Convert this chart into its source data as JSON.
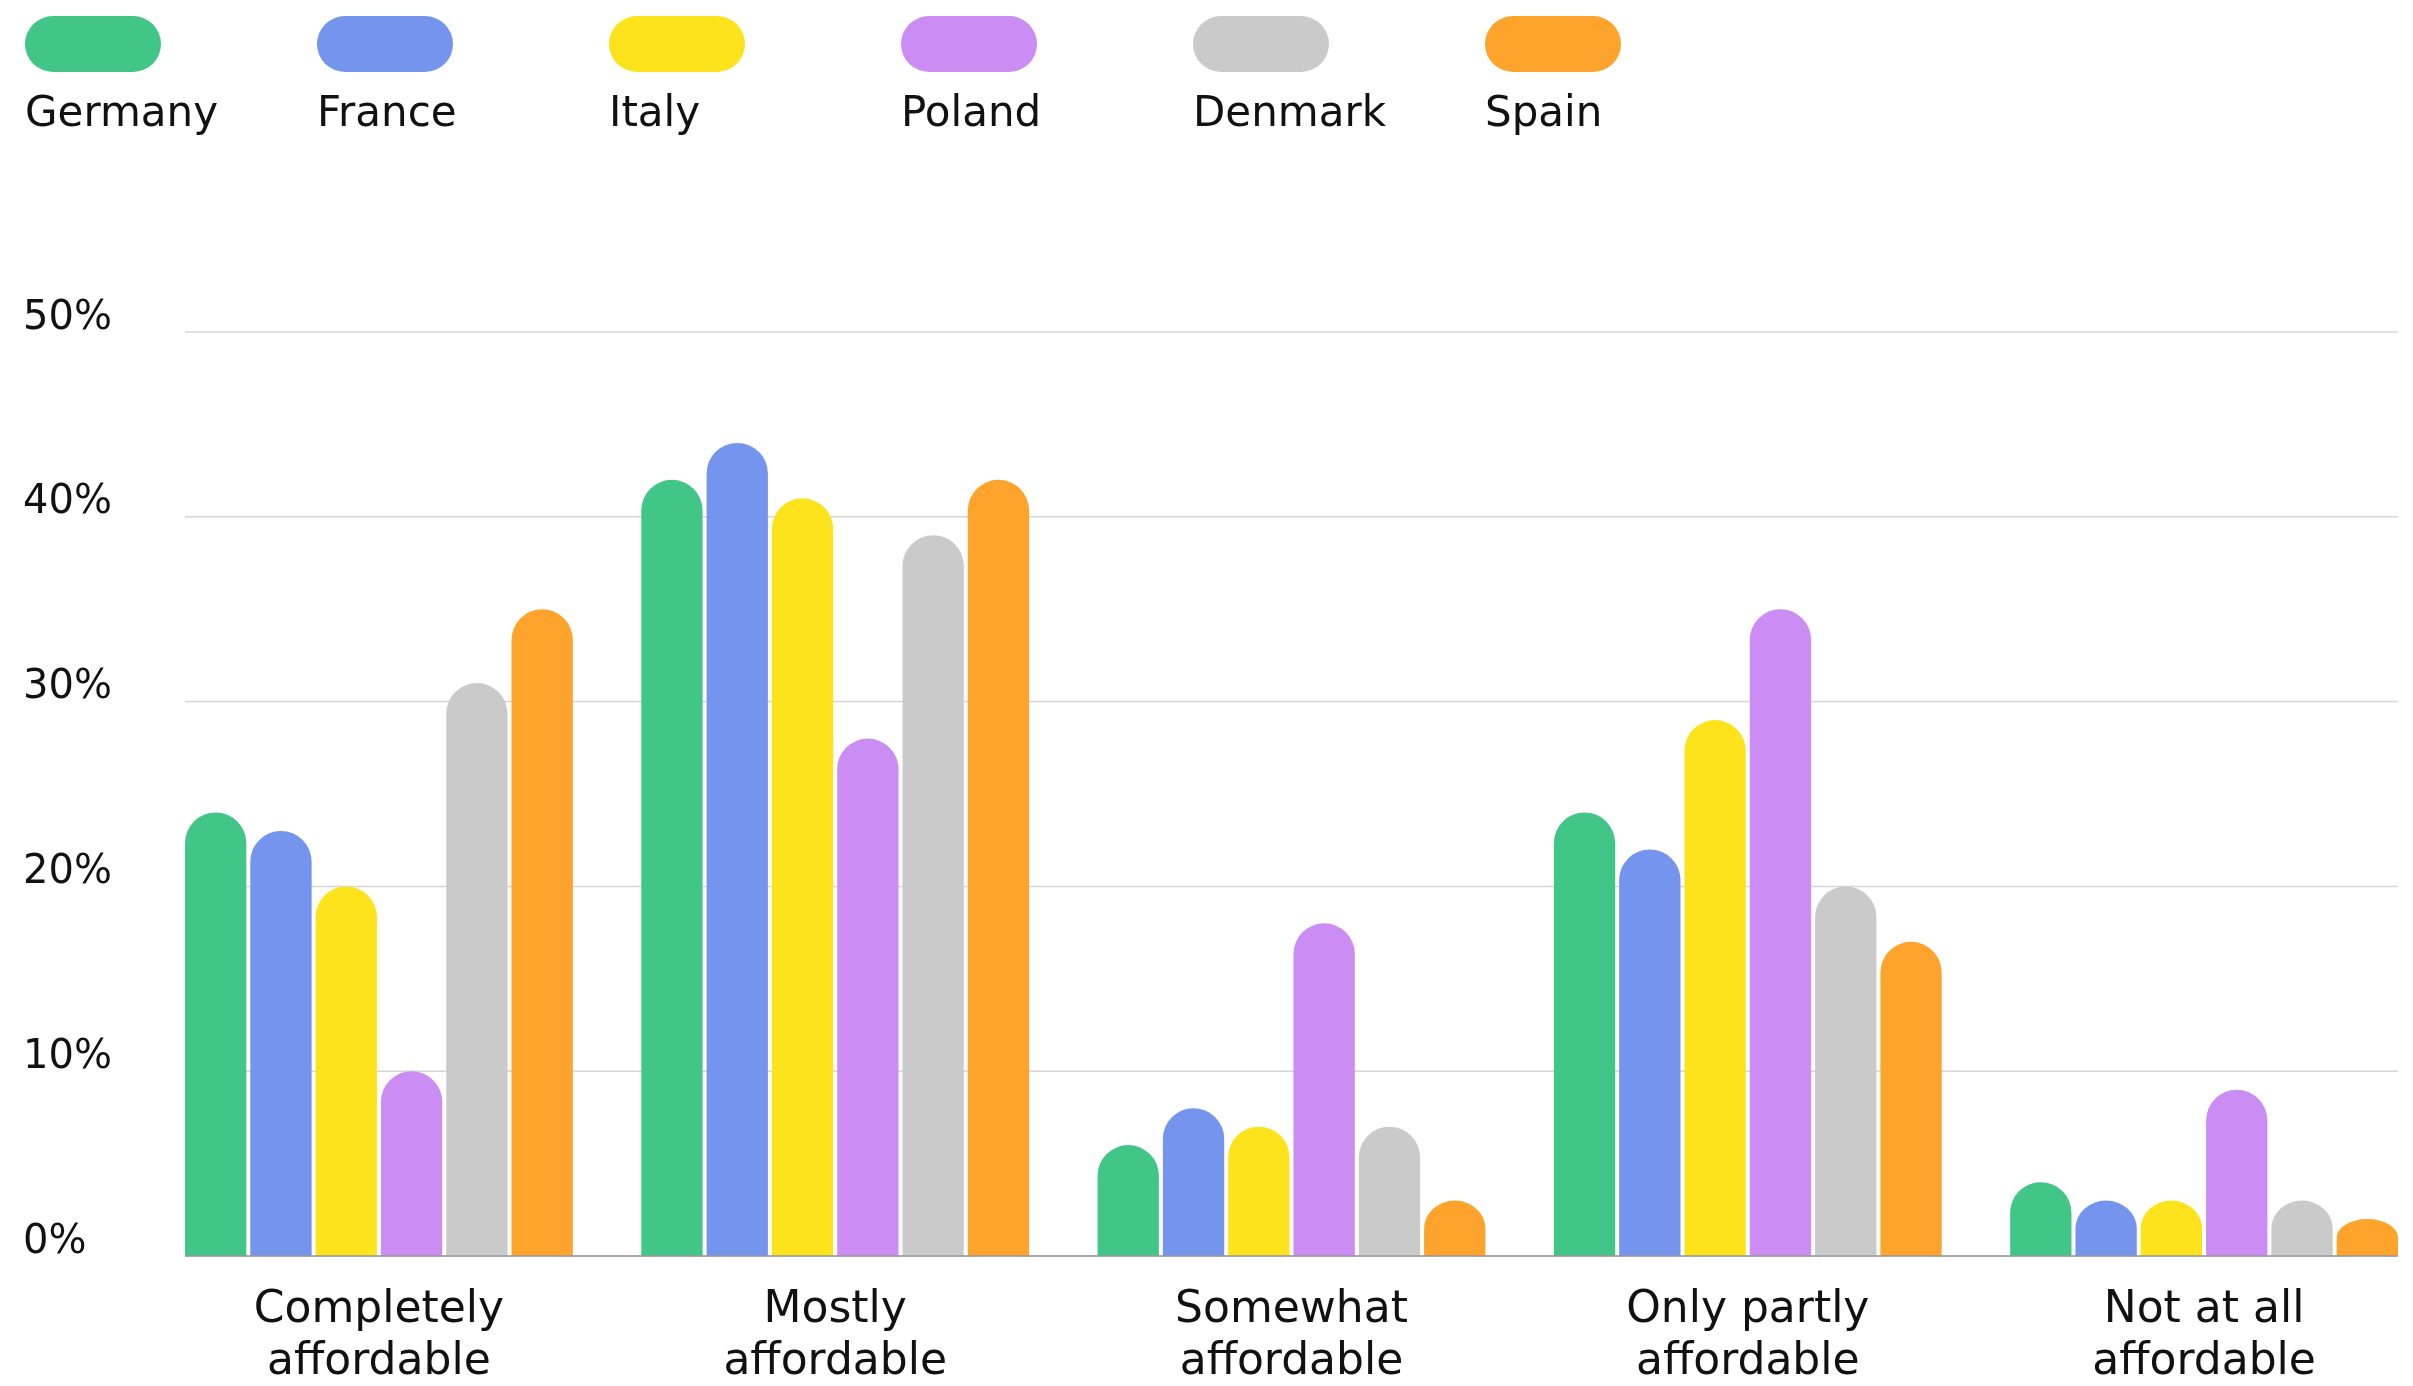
{
  "chart_data": {
    "type": "bar",
    "categories": [
      "Completely affordable",
      "Mostly affordable",
      "Somewhat affordable",
      "Only partly affordable",
      "Not at all affordable"
    ],
    "series": [
      {
        "name": "Germany",
        "color": "#41c688",
        "values": [
          24,
          42,
          6,
          24,
          4
        ]
      },
      {
        "name": "France",
        "color": "#7594ee",
        "values": [
          23,
          44,
          8,
          22,
          3
        ]
      },
      {
        "name": "Italy",
        "color": "#fde31b",
        "values": [
          20,
          41,
          7,
          29,
          3
        ]
      },
      {
        "name": "Poland",
        "color": "#cb8cf4",
        "values": [
          10,
          28,
          18,
          35,
          9
        ]
      },
      {
        "name": "Denmark",
        "color": "#cacaca",
        "values": [
          31,
          39,
          7,
          20,
          3
        ]
      },
      {
        "name": "Spain",
        "color": "#fea32b",
        "values": [
          35,
          42,
          3,
          17,
          2
        ]
      }
    ],
    "ylim": [
      0,
      50
    ],
    "yticks": [
      {
        "value": 0,
        "label": "0%"
      },
      {
        "value": 10,
        "label": "10%"
      },
      {
        "value": 20,
        "label": "20%"
      },
      {
        "value": 30,
        "label": "30%"
      },
      {
        "value": 40,
        "label": "40%"
      },
      {
        "value": 50,
        "label": "50%"
      }
    ],
    "grid": "y",
    "legend": "top left"
  }
}
